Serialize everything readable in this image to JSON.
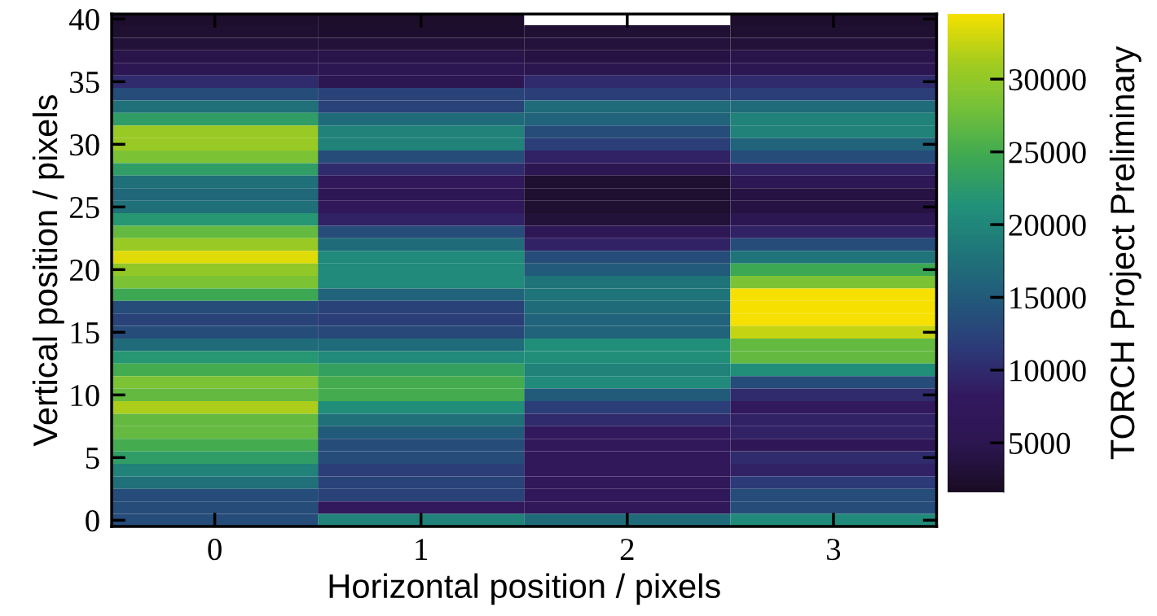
{
  "chart_data": {
    "type": "heatmap",
    "xlabel": "Horizontal position / pixels",
    "ylabel": "Vertical position / pixels",
    "clabel": "TORCH Project Preliminary",
    "x": [
      0,
      1,
      2,
      3
    ],
    "y": [
      40,
      39,
      38,
      37,
      36,
      35,
      34,
      33,
      32,
      31,
      30,
      29,
      28,
      27,
      26,
      25,
      24,
      23,
      22,
      21,
      20,
      19,
      18,
      17,
      16,
      15,
      14,
      13,
      12,
      11,
      10,
      9,
      8,
      7,
      6,
      5,
      4,
      3,
      2,
      1,
      0
    ],
    "cells": [
      [
        2300,
        2200,
        null,
        2300
      ],
      [
        2600,
        2400,
        2800,
        2500
      ],
      [
        3200,
        3300,
        3500,
        3300
      ],
      [
        4500,
        4500,
        4000,
        4500
      ],
      [
        5500,
        5500,
        5000,
        5500
      ],
      [
        10000,
        5500,
        10000,
        10000
      ],
      [
        13500,
        12500,
        12000,
        12000
      ],
      [
        17500,
        12500,
        17000,
        17000
      ],
      [
        23000,
        17000,
        16000,
        19500
      ],
      [
        30500,
        19500,
        13500,
        19500
      ],
      [
        30500,
        19500,
        12000,
        16000
      ],
      [
        28500,
        13500,
        9000,
        13500
      ],
      [
        23000,
        10000,
        5500,
        9000
      ],
      [
        17500,
        7000,
        2500,
        6000
      ],
      [
        16500,
        6000,
        2500,
        4000
      ],
      [
        17500,
        7000,
        2600,
        4000
      ],
      [
        22000,
        9000,
        3200,
        5500
      ],
      [
        27000,
        13500,
        6000,
        9000
      ],
      [
        30500,
        17000,
        9000,
        13500
      ],
      [
        33500,
        20500,
        13500,
        18000
      ],
      [
        30000,
        20500,
        15000,
        24500
      ],
      [
        28500,
        20500,
        18000,
        28500
      ],
      [
        24500,
        16000,
        18000,
        34500
      ],
      [
        13500,
        12500,
        17000,
        34500
      ],
      [
        12500,
        12000,
        16000,
        34500
      ],
      [
        13500,
        13000,
        16000,
        32500
      ],
      [
        17000,
        17000,
        21000,
        27000
      ],
      [
        22000,
        20500,
        21000,
        27000
      ],
      [
        25000,
        23500,
        19500,
        21000
      ],
      [
        28500,
        25000,
        20500,
        13500
      ],
      [
        27000,
        25000,
        15000,
        10000
      ],
      [
        31500,
        21000,
        12000,
        8000
      ],
      [
        27000,
        17500,
        10000,
        9000
      ],
      [
        27000,
        15000,
        8000,
        9000
      ],
      [
        25000,
        13500,
        7500,
        6500
      ],
      [
        23000,
        13500,
        7500,
        10000
      ],
      [
        19500,
        12000,
        7500,
        9000
      ],
      [
        17500,
        12500,
        7500,
        11500
      ],
      [
        13500,
        12500,
        7500,
        13500
      ],
      [
        13500,
        8000,
        7000,
        13500
      ],
      [
        13500,
        19500,
        17000,
        20500
      ]
    ],
    "xlim": [
      -0.5,
      3.5
    ],
    "ylim": [
      -0.5,
      40.4
    ],
    "xticks": [
      0,
      1,
      2,
      3
    ],
    "yticks": [
      0,
      5,
      10,
      15,
      20,
      25,
      30,
      35,
      40
    ],
    "clim": [
      1600,
      34500
    ],
    "cticks": [
      5000,
      10000,
      15000,
      20000,
      25000,
      30000
    ]
  }
}
